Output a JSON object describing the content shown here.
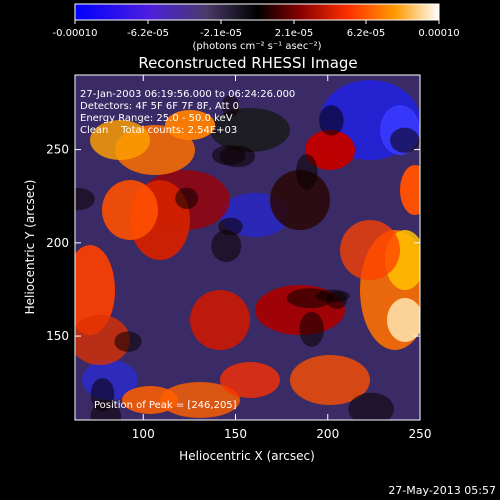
{
  "chart_data": {
    "type": "heatmap",
    "title": "Reconstructed RHESSI Image",
    "colorbar": {
      "ticks": [
        "-0.00010",
        "-6.2e-05",
        "-2.1e-05",
        "2.1e-05",
        "6.2e-05",
        "0.00010"
      ],
      "range": [
        -0.0001,
        0.0001
      ],
      "units_label": "(photons cm⁻² s⁻¹ asec⁻²)",
      "colormap": [
        "#0000ff",
        "#5a28c8",
        "#3c3c3c",
        "#000000",
        "#8c0000",
        "#ff3c00",
        "#ff9a00",
        "#ffffff"
      ]
    },
    "annotations": [
      "27-Jan-2003 06:19:56.000 to 06:24:26.000",
      "Detectors: 4F 5F 6F 7F 8F, Att 0",
      "Energy Range: 25.0 - 50.0 keV",
      "Clean    Total counts: 2.54E+03"
    ],
    "peak_text": "Position of Peak = [246,205]",
    "xlabel": "Heliocentric X (arcsec)",
    "ylabel": "Heliocentric Y (arcsec)",
    "xlim": [
      63,
      250
    ],
    "ylim": [
      105,
      290
    ],
    "xticks": [
      100,
      150,
      200,
      250
    ],
    "yticks": [
      150,
      200,
      250
    ],
    "peak": {
      "x": 246,
      "y": 205
    }
  },
  "footer_timestamp": "27-May-2013 05:57"
}
